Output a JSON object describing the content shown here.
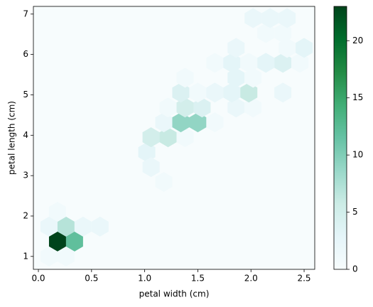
{
  "chart_data": {
    "type": "hexbin",
    "x_label": "petal width (cm)",
    "y_label": "petal length (cm)",
    "x": [
      0.18,
      0.34,
      0.1,
      0.26,
      0.1,
      0.26,
      0.42,
      0.58,
      0.18,
      1.02,
      1.06,
      1.18,
      1.06,
      1.22,
      1.38,
      1.18,
      1.34,
      1.5,
      1.66,
      1.22,
      1.38,
      1.54,
      1.86,
      2.02,
      1.34,
      1.5,
      1.66,
      1.82,
      1.98,
      2.3,
      1.38,
      1.86,
      2.02,
      1.66,
      1.82,
      1.98,
      2.14,
      2.3,
      2.46,
      1.86,
      2.34,
      2.5,
      2.14,
      2.3,
      2.02,
      2.18,
      2.34
    ],
    "y": [
      1.369,
      1.369,
      1.0,
      1.0,
      1.7375,
      1.7375,
      1.7375,
      1.7375,
      2.106,
      3.581,
      3.2125,
      2.844,
      3.95,
      3.95,
      3.95,
      4.319,
      4.319,
      4.319,
      4.319,
      4.6875,
      4.6875,
      4.6875,
      4.6875,
      4.6875,
      5.056,
      5.056,
      5.056,
      5.056,
      5.056,
      5.056,
      5.425,
      5.425,
      5.425,
      5.794,
      5.794,
      5.794,
      5.794,
      5.794,
      5.794,
      6.1625,
      6.1625,
      6.1625,
      6.531,
      6.531,
      6.9,
      6.9,
      6.9
    ],
    "values": [
      23,
      12,
      1,
      1,
      2,
      7,
      2,
      2,
      1,
      3,
      2,
      1,
      5,
      6,
      1,
      2,
      9,
      9,
      1,
      1,
      5,
      4,
      2,
      1,
      4,
      1,
      2,
      3,
      6,
      2,
      1,
      3,
      1,
      1,
      3,
      1,
      3,
      4,
      1,
      2,
      1,
      3,
      1,
      1,
      2,
      2,
      2
    ],
    "xlim": [
      -0.047,
      2.6
    ],
    "ylim": [
      0.68,
      7.19
    ],
    "xticks": [
      {
        "value": 0,
        "label": "0.0"
      },
      0.5,
      {
        "value": 1,
        "label": "1.0"
      },
      1.5,
      {
        "value": 2,
        "label": "2.0"
      },
      2.5
    ],
    "yticks": [
      1,
      2,
      3,
      4,
      5,
      6,
      7
    ],
    "clim": [
      0,
      23
    ],
    "cticks": [
      0,
      5,
      10,
      15,
      20
    ],
    "colormap": [
      "#f7fcfd",
      "#e5f5f9",
      "#ccece6",
      "#99d8c9",
      "#66c2a4",
      "#41ae76",
      "#238b45",
      "#006d2c",
      "#00441b"
    ]
  }
}
